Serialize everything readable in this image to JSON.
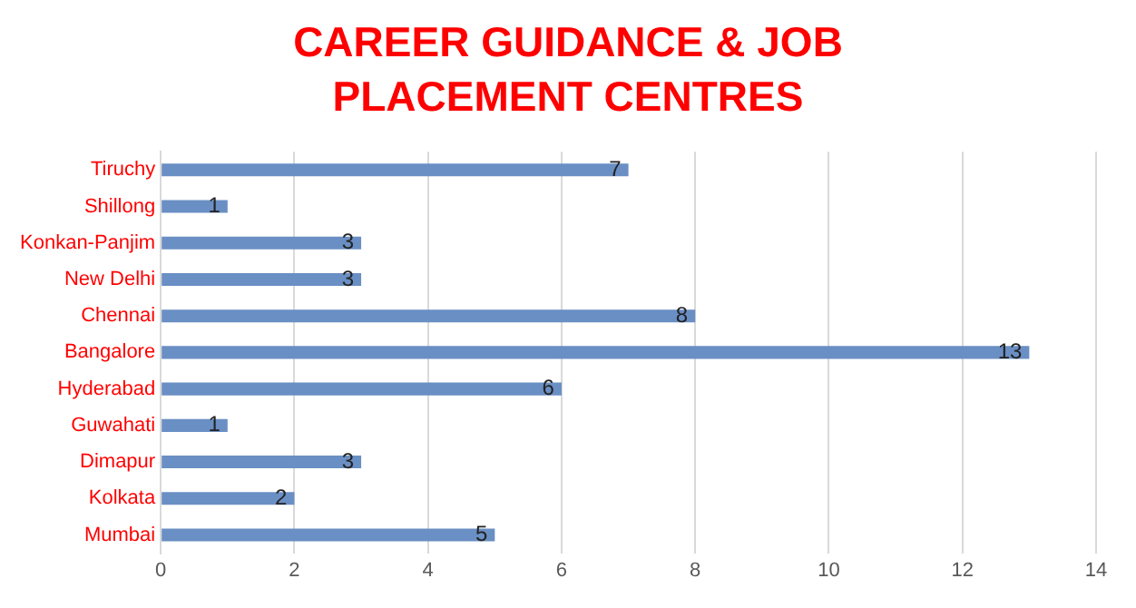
{
  "chart_data": {
    "type": "bar",
    "orientation": "horizontal",
    "title": "CAREER GUIDANCE  & JOB PLACEMENT CENTRES",
    "categories": [
      "Tiruchy",
      "Shillong",
      "Konkan-Panjim",
      "New Delhi",
      "Chennai",
      "Bangalore",
      "Hyderabad",
      "Guwahati",
      "Dimapur",
      "Kolkata",
      "Mumbai"
    ],
    "values": [
      7,
      1,
      3,
      3,
      8,
      13,
      6,
      1,
      3,
      2,
      5
    ],
    "color": "#6a8fc4",
    "xlim": [
      0,
      14
    ],
    "xticks": [
      0,
      2,
      4,
      6,
      8,
      10,
      12,
      14
    ],
    "grid": "x",
    "legend": false,
    "data_labels": true
  }
}
